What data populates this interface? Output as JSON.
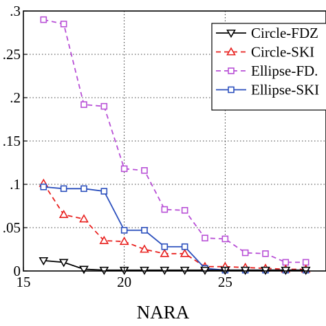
{
  "chart_data": {
    "type": "line",
    "xlabel": "NARA",
    "ylabel": "",
    "xlim": [
      15,
      30
    ],
    "ylim": [
      0,
      0.3
    ],
    "x_ticks": [
      15,
      20,
      25
    ],
    "x_tick_labels": [
      "15",
      "20",
      "25"
    ],
    "y_ticks": [
      0,
      0.05,
      0.1,
      0.15,
      0.2,
      0.25,
      0.3
    ],
    "y_tick_labels": [
      "0",
      ".05",
      ".1",
      ".15",
      ".2",
      ".25",
      ".3"
    ],
    "grid": true,
    "legend_position": "top-right",
    "x": [
      16,
      17,
      18,
      19,
      20,
      21,
      22,
      23,
      24,
      25,
      26,
      27,
      28,
      29
    ],
    "series": [
      {
        "name": "Circle-FDZ",
        "color": "#000000",
        "marker": "triangle-down",
        "dash": "solid",
        "values": [
          0.012,
          0.01,
          0.002,
          0.001,
          0.001,
          0.001,
          0.001,
          0.001,
          0.001,
          0.001,
          0.001,
          0.001,
          0.001,
          0.001
        ]
      },
      {
        "name": "Circle-SKI",
        "color": "#e8201e",
        "marker": "triangle-up",
        "dash": "dashed",
        "values": [
          0.101,
          0.065,
          0.06,
          0.035,
          0.034,
          0.025,
          0.02,
          0.02,
          0.005,
          0.005,
          0.004,
          0.003,
          0.002,
          0.002
        ]
      },
      {
        "name": "Ellipse-FD.",
        "color": "#b84fd6",
        "marker": "square",
        "dash": "dashed",
        "values": [
          0.29,
          0.285,
          0.192,
          0.19,
          0.118,
          0.116,
          0.071,
          0.07,
          0.038,
          0.037,
          0.021,
          0.02,
          0.01,
          0.01
        ]
      },
      {
        "name": "Ellipse-SKI",
        "color": "#2b4fbd",
        "marker": "square",
        "dash": "solid",
        "values": [
          0.097,
          0.095,
          0.095,
          0.092,
          0.047,
          0.047,
          0.028,
          0.028,
          0.003,
          0.001,
          0.001,
          0.001,
          0.001,
          0.001
        ]
      }
    ]
  }
}
